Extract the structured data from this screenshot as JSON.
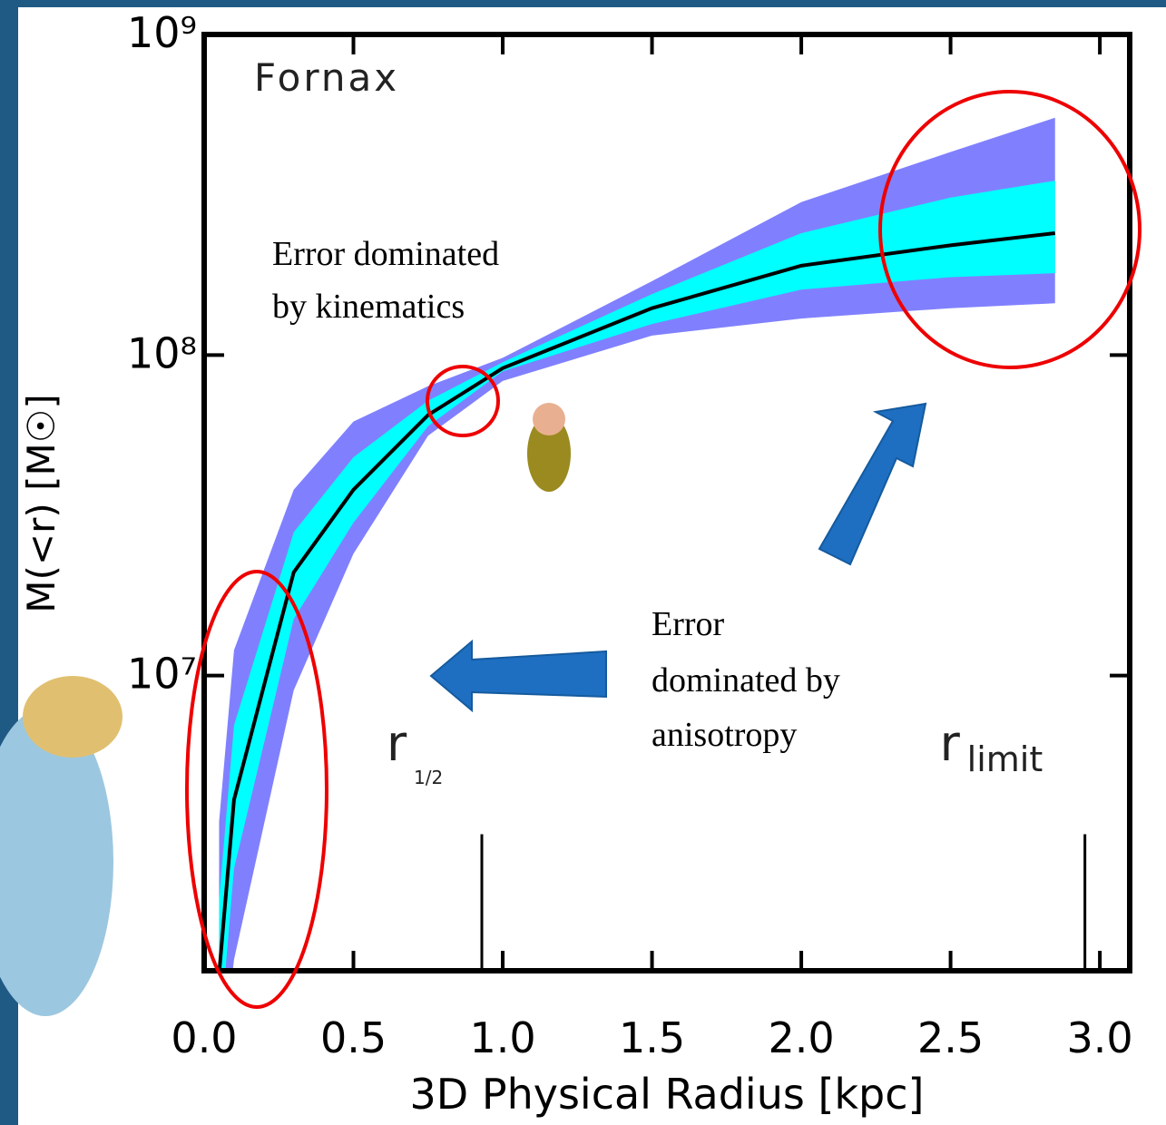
{
  "chart_data": {
    "type": "band",
    "title": "Fornax",
    "xlabel": "3D Physical Radius [kpc]",
    "ylabel": "M(<r) [M☉]",
    "log_y": true,
    "xlim": [
      0,
      3.1
    ],
    "ylim": [
      1200000,
      1000000000
    ],
    "xticks": [
      {
        "value": 0,
        "label": "0.0"
      },
      0.5,
      {
        "value": 1,
        "label": "1.0"
      },
      1.5,
      {
        "value": 2,
        "label": "2.0"
      },
      2.5,
      {
        "value": 3,
        "label": "3.0"
      }
    ],
    "yticks": [
      {
        "value": 10000000,
        "label": "10⁷"
      },
      {
        "value": 100000000,
        "label": "10⁸"
      },
      {
        "value": 1000000000,
        "label": "10⁹"
      }
    ],
    "x": [
      0.05,
      0.1,
      0.3,
      0.5,
      0.75,
      1.0,
      1.5,
      2.0,
      2.5,
      2.85
    ],
    "bands": [
      {
        "color": "#8080ff",
        "upper": [
          3500000,
          12000000,
          38000000,
          62000000,
          80000000,
          98000000,
          170000000,
          300000000,
          430000000,
          550000000
        ],
        "lower": [
          500000,
          1300000,
          9000000,
          24000000,
          56000000,
          83000000,
          115000000,
          130000000,
          140000000,
          145000000
        ]
      },
      {
        "color": "#00ffff",
        "upper": [
          2000000,
          7000000,
          28000000,
          48000000,
          72000000,
          95000000,
          155000000,
          240000000,
          310000000,
          350000000
        ],
        "lower": [
          700000,
          2500000,
          15000000,
          30000000,
          60000000,
          89000000,
          125000000,
          160000000,
          175000000,
          180000000
        ]
      }
    ],
    "line": {
      "color": "#000000",
      "values": [
        1170000,
        4100000,
        21000000,
        38000000,
        65000000,
        91000000,
        140000000,
        190000000,
        220000000,
        240000000
      ]
    },
    "markers": [
      {
        "x": 0.93,
        "top": 3200000,
        "label": "r",
        "sub": "1/2"
      },
      {
        "x": 2.95,
        "top": 3200000,
        "label": "r",
        "sub": "limit"
      }
    ],
    "annotations": [
      "Error dominated by kinematics",
      "Error",
      "dominated by",
      "anisotropy"
    ]
  }
}
